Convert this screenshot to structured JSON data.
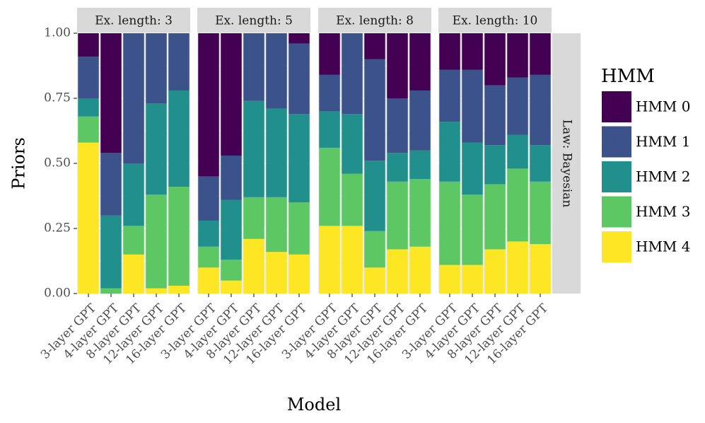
{
  "chart_data": {
    "type": "bar",
    "stacked": true,
    "title": "",
    "xlabel": "Model",
    "ylabel": "Priors",
    "ylim": [
      0,
      1
    ],
    "yticks": [
      0,
      0.25,
      0.5,
      0.75,
      1
    ],
    "ytick_labels": [
      "0.00",
      "0.25",
      "0.50",
      "0.75",
      "1.00"
    ],
    "grid": true,
    "legend_position": "right",
    "legend_title": "HMM",
    "facet_row_label": "Law: Bayesian",
    "categories": [
      "3-layer GPT",
      "4-layer GPT",
      "8-layer GPT",
      "12-layer GPT",
      "16-layer GPT"
    ],
    "series_names": [
      "HMM 0",
      "HMM 1",
      "HMM 2",
      "HMM 3",
      "HMM 4"
    ],
    "series_colors": [
      "#440154",
      "#3B528B",
      "#21908C",
      "#5DC863",
      "#FDE725"
    ],
    "facets": [
      {
        "label": "Ex. length: 3",
        "values": {
          "HMM 0": [
            0.09,
            0.46,
            0.0,
            0.0,
            0.0
          ],
          "HMM 1": [
            0.16,
            0.24,
            0.5,
            0.27,
            0.22
          ],
          "HMM 2": [
            0.07,
            0.28,
            0.24,
            0.35,
            0.37
          ],
          "HMM 3": [
            0.1,
            0.02,
            0.11,
            0.36,
            0.38
          ],
          "HMM 4": [
            0.58,
            0.0,
            0.15,
            0.02,
            0.03
          ]
        }
      },
      {
        "label": "Ex. length: 5",
        "values": {
          "HMM 0": [
            0.55,
            0.47,
            0.0,
            0.0,
            0.04
          ],
          "HMM 1": [
            0.17,
            0.17,
            0.26,
            0.29,
            0.27
          ],
          "HMM 2": [
            0.1,
            0.23,
            0.37,
            0.34,
            0.34
          ],
          "HMM 3": [
            0.08,
            0.08,
            0.16,
            0.21,
            0.2
          ],
          "HMM 4": [
            0.1,
            0.05,
            0.21,
            0.16,
            0.15
          ]
        }
      },
      {
        "label": "Ex. length: 8",
        "values": {
          "HMM 0": [
            0.16,
            0.0,
            0.1,
            0.25,
            0.22
          ],
          "HMM 1": [
            0.14,
            0.31,
            0.39,
            0.21,
            0.23
          ],
          "HMM 2": [
            0.14,
            0.23,
            0.27,
            0.11,
            0.11
          ],
          "HMM 3": [
            0.3,
            0.2,
            0.14,
            0.26,
            0.26
          ],
          "HMM 4": [
            0.26,
            0.26,
            0.1,
            0.17,
            0.18
          ]
        }
      },
      {
        "label": "Ex. length: 10",
        "values": {
          "HMM 0": [
            0.14,
            0.14,
            0.2,
            0.17,
            0.16
          ],
          "HMM 1": [
            0.2,
            0.28,
            0.23,
            0.22,
            0.27
          ],
          "HMM 2": [
            0.23,
            0.2,
            0.15,
            0.13,
            0.14
          ],
          "HMM 3": [
            0.32,
            0.27,
            0.25,
            0.28,
            0.24
          ],
          "HMM 4": [
            0.11,
            0.11,
            0.17,
            0.2,
            0.19
          ]
        }
      }
    ]
  }
}
